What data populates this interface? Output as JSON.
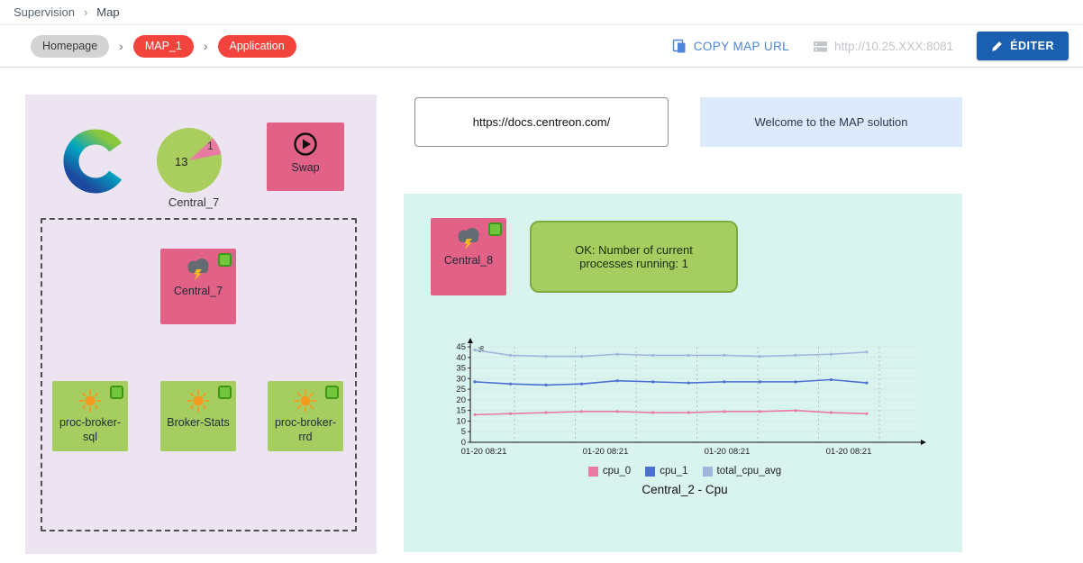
{
  "topnav": {
    "section": "Supervision",
    "separator": "›",
    "page": "Map"
  },
  "toolbar": {
    "separator": "›",
    "breadcrumbs": [
      {
        "label": "Homepage"
      },
      {
        "label": "MAP_1"
      },
      {
        "label": "Application"
      }
    ],
    "copy_map_url_label": "COPY MAP URL",
    "server_url": "http://10.25.XXX:8081",
    "edit_button_label": "ÉDITER"
  },
  "map": {
    "left_panel": {
      "pie_widget": {
        "value_major": "13",
        "value_minor": "1",
        "caption": "Central_7"
      },
      "swap_box": {
        "label": "Swap"
      },
      "central7_box": {
        "label": "Central_7"
      },
      "service_boxes": [
        {
          "label": "proc-broker-sql"
        },
        {
          "label": "Broker-Stats"
        },
        {
          "label": "proc-broker-rrd"
        }
      ]
    },
    "right_panel": {
      "docs_url": "https://docs.centreon.com/",
      "welcome_text": "Welcome to the MAP solution",
      "central8_box": {
        "label": "Central_8"
      },
      "status_message": "OK: Number of current processes running: 1"
    }
  },
  "chart_data": {
    "type": "line",
    "title": "Central_2 - Cpu",
    "ylabel": "%",
    "ylim": [
      0,
      45
    ],
    "yticks": [
      0,
      5,
      10,
      15,
      20,
      25,
      30,
      35,
      40,
      45
    ],
    "x_labels": [
      "01-20 08:21",
      "01-20 08:21",
      "01-20 08:21",
      "01-20 08:21"
    ],
    "grid": true,
    "legend_position": "bottom",
    "series": [
      {
        "name": "cpu_0",
        "color": "#e87ba2",
        "values": [
          13,
          13.5,
          14,
          14.5,
          14.5,
          14,
          14,
          14.5,
          14.5,
          15,
          14,
          13.5
        ]
      },
      {
        "name": "cpu_1",
        "color": "#4c6fd3",
        "values": [
          28.5,
          27.5,
          27,
          27.5,
          29,
          28.5,
          28,
          28.5,
          28.5,
          28.5,
          29.5,
          28
        ]
      },
      {
        "name": "total_cpu_avg",
        "color": "#9fb6dc",
        "values": [
          43.5,
          41,
          40.5,
          40.5,
          41.5,
          41,
          41,
          41,
          40.5,
          41,
          41.5,
          42.5
        ]
      }
    ]
  }
}
